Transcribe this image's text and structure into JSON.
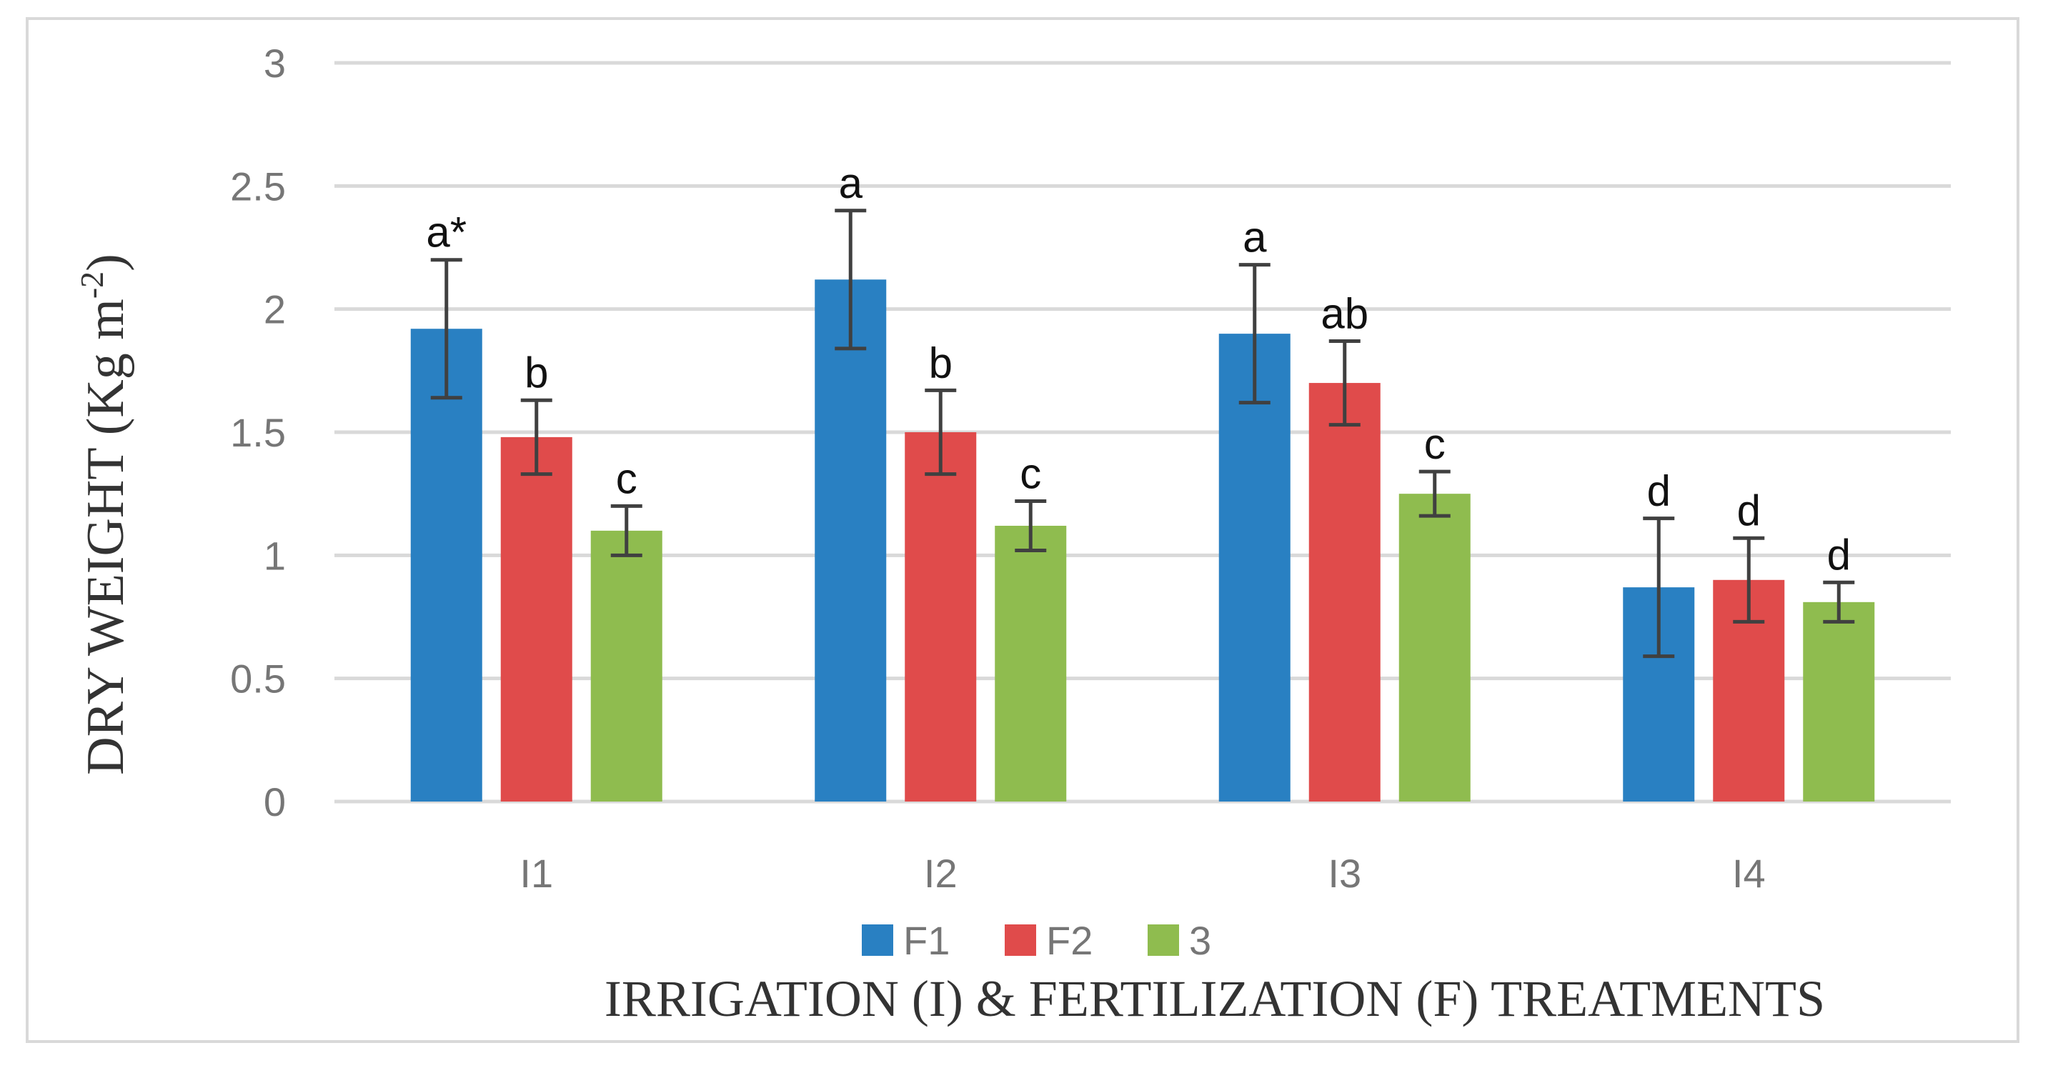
{
  "chart_data": {
    "type": "bar",
    "categories": [
      "I1",
      "I2",
      "I3",
      "I4"
    ],
    "series": [
      {
        "name": "F1",
        "color": "#2980c2",
        "values": [
          1.92,
          2.12,
          1.9,
          0.87
        ],
        "errors": [
          0.28,
          0.28,
          0.28,
          0.28
        ],
        "labels": [
          "a*",
          "a",
          "a",
          "d"
        ]
      },
      {
        "name": "F2",
        "color": "#e04b4b",
        "values": [
          1.48,
          1.5,
          1.7,
          0.9
        ],
        "errors": [
          0.15,
          0.17,
          0.17,
          0.17
        ],
        "labels": [
          "b",
          "b",
          "ab",
          "d"
        ]
      },
      {
        "name": "3",
        "color": "#8fbc4f",
        "values": [
          1.1,
          1.12,
          1.25,
          0.81
        ],
        "errors": [
          0.1,
          0.1,
          0.09,
          0.08
        ],
        "labels": [
          "c",
          "c",
          "c",
          "d"
        ]
      }
    ],
    "ylim": [
      0,
      3
    ],
    "yticks": [
      "0",
      "0.5",
      "1",
      "1.5",
      "2",
      "2.5",
      "3"
    ],
    "ylabel_main": "DRY WEIGHT  (Kg m",
    "ylabel_sup": "-2",
    "ylabel_close": ")",
    "xlabel": "IRRIGATION  (I) & FERTILIZATION  (F) TREATMENTS",
    "grid": true,
    "legend": "bottom-center"
  }
}
